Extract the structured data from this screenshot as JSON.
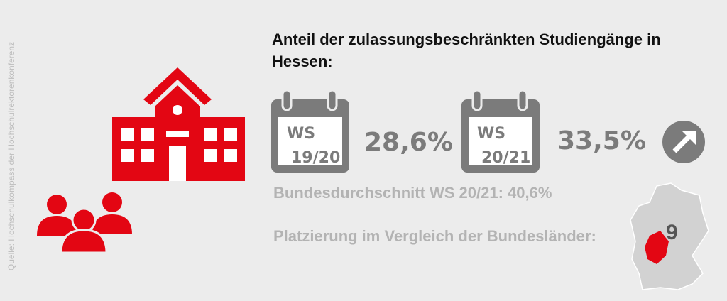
{
  "source": "Quelle: Hochschulkompass der Hochschulrektorenkonferenz",
  "title": "Anteil der zulassungsbeschränkten Studiengänge in Hessen:",
  "semesters": [
    {
      "label": "WS",
      "year": "19/20",
      "value": "28,6%"
    },
    {
      "label": "WS",
      "year": "20/21",
      "value": "33,5%"
    }
  ],
  "average": "Bundesdurchschnitt WS 20/21: 40,6%",
  "ranking": {
    "label": "Platzierung im Vergleich der Bundesländer:",
    "rank": "9"
  }
}
